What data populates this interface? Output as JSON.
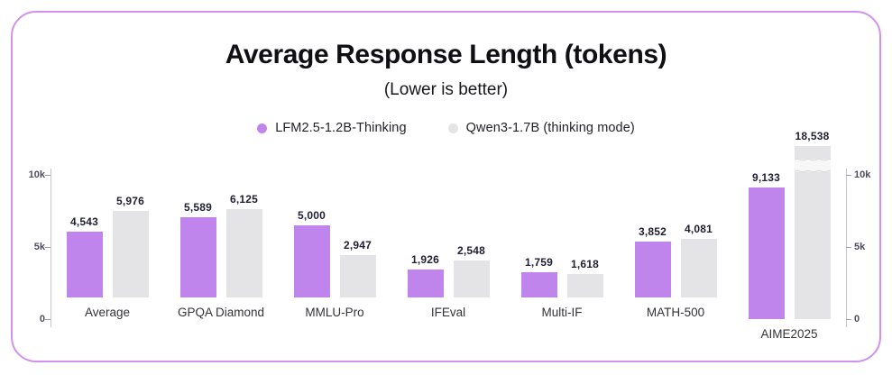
{
  "title": "Average Response Length (tokens)",
  "subtitle": "(Lower is better)",
  "legend": [
    {
      "label": "LFM2.5-1.2B-Thinking",
      "color": "#bf85ec"
    },
    {
      "label": "Qwen3-1.7B (thinking mode)",
      "color": "#e4e3e5"
    }
  ],
  "colors": {
    "card_border": "#cf92ef",
    "series_purple": "#bf85ec",
    "series_gray": "#e4e3e5",
    "axis_line": "#c4c4ce",
    "tick_mark": "#9d9daa",
    "tick_text": "#4c4c5e",
    "value_text": "#1f1f33",
    "break_fill": "#f7f7f8",
    "break_wave": "#dcdbde"
  },
  "chart_data": {
    "type": "bar",
    "title": "Average Response Length (tokens)",
    "subtitle": "(Lower is better)",
    "categories": [
      "Average",
      "GPQA Diamond",
      "MMLU-Pro",
      "IFEval",
      "Multi-IF",
      "MATH-500",
      "AIME2025"
    ],
    "series": [
      {
        "name": "LFM2.5-1.2B-Thinking",
        "color": "#bf85ec",
        "values": [
          4543,
          5589,
          5000,
          1926,
          1759,
          3852,
          9133
        ]
      },
      {
        "name": "Qwen3-1.7B (thinking mode)",
        "color": "#e4e3e5",
        "values": [
          5976,
          6125,
          2947,
          2548,
          1618,
          4081,
          18538
        ]
      }
    ],
    "value_labels": [
      [
        "4,543",
        "5,589",
        "5,000",
        "1,926",
        "1,759",
        "3,852",
        "9,133"
      ],
      [
        "5,976",
        "6,125",
        "2,947",
        "2,548",
        "1,618",
        "4,081",
        "18,538"
      ]
    ],
    "ylim": [
      0,
      10000
    ],
    "yticks": [
      {
        "value": 0,
        "label": "0"
      },
      {
        "value": 5000,
        "label": "5k"
      },
      {
        "value": 10000,
        "label": "10k"
      }
    ],
    "axis_break": {
      "series_index": 1,
      "category_index": 6
    },
    "legend_position": "top",
    "grid": false,
    "dual_y_axis": true
  }
}
